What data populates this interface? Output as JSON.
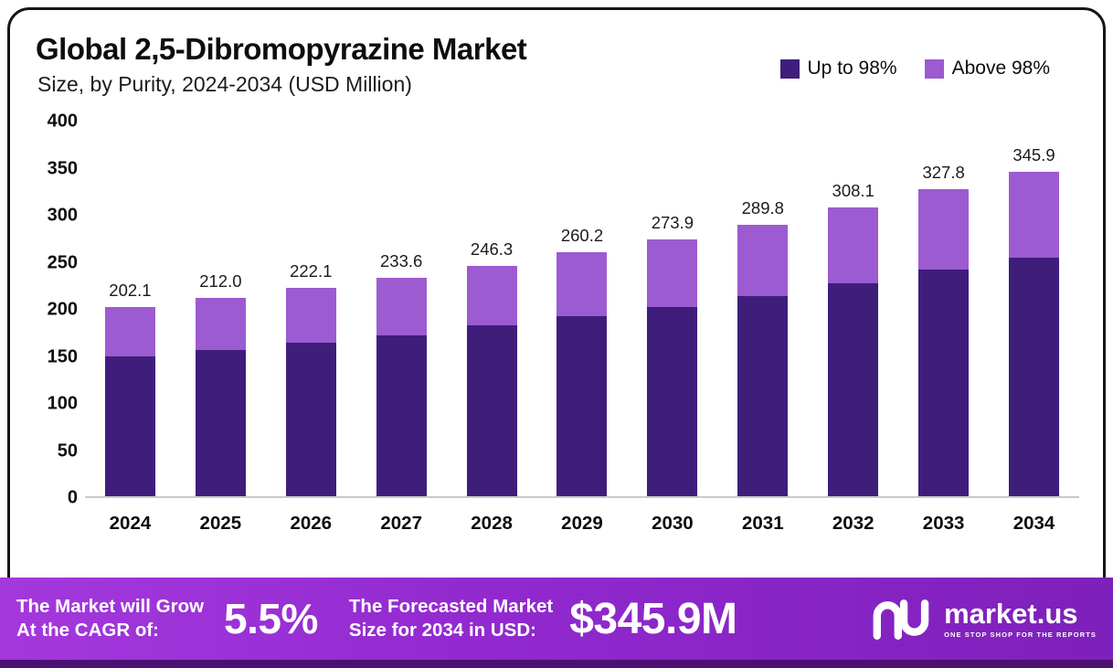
{
  "header": {
    "title": "Global 2,5-Dibromopyrazine Market",
    "subtitle": "Size, by Purity, 2024-2034 (USD Million)"
  },
  "legend": [
    {
      "label": "Up to 98%",
      "color": "#3e1e7a"
    },
    {
      "label": "Above 98%",
      "color": "#9c5bd1"
    }
  ],
  "chart_data": {
    "type": "bar",
    "stacked": true,
    "title": "Global 2,5-Dibromopyrazine Market Size, by Purity, 2024-2034 (USD Million)",
    "xlabel": "",
    "ylabel": "USD Million",
    "ylim": [
      0,
      400
    ],
    "yticks": [
      "400",
      "350",
      "300",
      "250",
      "200",
      "150",
      "100",
      "50",
      "0"
    ],
    "grid": false,
    "legend_position": "top-right",
    "categories": [
      "2024",
      "2025",
      "2026",
      "2027",
      "2028",
      "2029",
      "2030",
      "2031",
      "2032",
      "2033",
      "2034"
    ],
    "series": [
      {
        "name": "Up to 98%",
        "color": "#3e1e7a",
        "values": [
          149.5,
          156.0,
          163.5,
          172.0,
          182.0,
          192.0,
          202.0,
          214.0,
          227.0,
          241.5,
          255.0
        ]
      },
      {
        "name": "Above 98%",
        "color": "#9c5bd1",
        "values": [
          52.6,
          56.0,
          58.6,
          61.6,
          64.3,
          68.2,
          71.9,
          75.8,
          81.1,
          86.3,
          90.9
        ]
      }
    ],
    "totals": [
      202.1,
      212.0,
      222.1,
      233.6,
      246.3,
      260.2,
      273.9,
      289.8,
      308.1,
      327.8,
      345.9
    ],
    "totals_display": [
      "202.1",
      "212.0",
      "222.1",
      "233.6",
      "246.3",
      "260.2",
      "273.9",
      "289.8",
      "308.1",
      "327.8",
      "345.9"
    ]
  },
  "footer": {
    "cagr_label_line1": "The Market will Grow",
    "cagr_label_line2": "At the CAGR of:",
    "cagr_value": "5.5%",
    "forecast_label_line1": "The Forecasted Market",
    "forecast_label_line2": "Size for 2034 in USD:",
    "forecast_value": "$345.9M",
    "brand": "market.us",
    "brand_tagline": "ONE STOP SHOP FOR THE REPORTS"
  }
}
